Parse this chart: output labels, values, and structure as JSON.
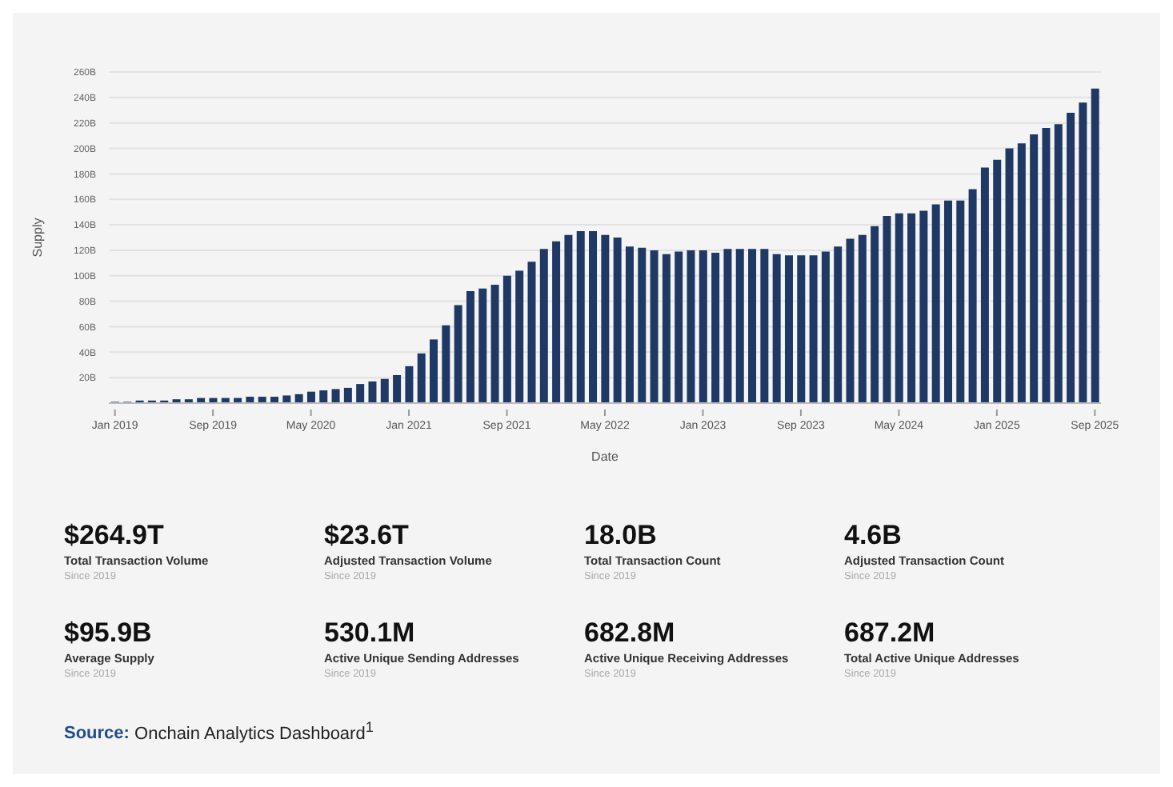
{
  "chart_data": [
    {
      "type": "bar",
      "xlabel": "Date",
      "ylabel": "Supply",
      "categories": [
        "Jan 2019",
        null,
        null,
        null,
        null,
        null,
        null,
        null,
        "Sep 2019",
        null,
        null,
        null,
        null,
        null,
        null,
        null,
        "May 2020",
        null,
        null,
        null,
        null,
        null,
        null,
        null,
        "Jan 2021",
        null,
        null,
        null,
        null,
        null,
        null,
        null,
        "Sep 2021",
        null,
        null,
        null,
        null,
        null,
        null,
        null,
        "May 2022",
        null,
        null,
        null,
        null,
        null,
        null,
        null,
        "Jan 2023",
        null,
        null,
        null,
        null,
        null,
        null,
        null,
        "Sep 2023",
        null,
        null,
        null,
        null,
        null,
        null,
        null,
        "May 2024",
        null,
        null,
        null,
        null,
        null,
        null,
        null,
        "Jan 2025",
        null,
        null,
        null,
        null,
        null,
        null,
        null,
        "Sep 2025"
      ],
      "values": [
        1,
        1,
        2,
        2,
        2,
        3,
        3,
        4,
        4,
        4,
        4,
        5,
        5,
        5,
        6,
        7,
        9,
        10,
        11,
        12,
        15,
        17,
        19,
        22,
        29,
        39,
        50,
        61,
        77,
        88,
        90,
        93,
        100,
        104,
        111,
        121,
        127,
        132,
        135,
        135,
        132,
        130,
        123,
        122,
        120,
        117,
        119,
        120,
        120,
        118,
        121,
        121,
        121,
        121,
        117,
        116,
        116,
        116,
        119,
        123,
        129,
        132,
        139,
        147,
        149,
        149,
        151,
        156,
        159,
        159,
        168,
        185,
        191,
        200,
        204,
        211,
        216,
        219,
        228,
        236,
        247
      ],
      "color": "#1f3864",
      "ylim": [
        0,
        260
      ],
      "yticks": [
        {
          "value": 20,
          "label": "20B"
        },
        {
          "value": 40,
          "label": "40B"
        },
        {
          "value": 60,
          "label": "60B"
        },
        {
          "value": 80,
          "label": "80B"
        },
        {
          "value": 100,
          "label": "100B"
        },
        {
          "value": 120,
          "label": "120B"
        },
        {
          "value": 140,
          "label": "140B"
        },
        {
          "value": 160,
          "label": "160B"
        },
        {
          "value": 180,
          "label": "180B"
        },
        {
          "value": 200,
          "label": "200B"
        },
        {
          "value": 220,
          "label": "220B"
        },
        {
          "value": 240,
          "label": "240B"
        },
        {
          "value": 260,
          "label": "260B"
        }
      ],
      "grid": "y",
      "annotations": [
        "Source: Onchain Analytics Dashboard$^{1}$"
      ]
    },
    {
      "type": "other",
      "annotations": [
        "$264.9T",
        "Total Transaction Volume",
        "Since 2019",
        "$23.6T",
        "Adjusted Transaction Volume",
        "Since 2019",
        "18.0B",
        "Total Transaction Count",
        "Since 2019",
        "4.6B",
        "Adjusted Transaction Count",
        "Since 2019",
        "$95.9B",
        "Average Supply",
        "Since 2019",
        "530.1M",
        "Active Unique Sending Addresses",
        "Since 2019",
        "682.8M",
        "Active Unique Receiving Addresses",
        "Since 2019",
        "687.2M",
        "Total Active Unique Addresses",
        "Since 2019"
      ]
    }
  ]
}
